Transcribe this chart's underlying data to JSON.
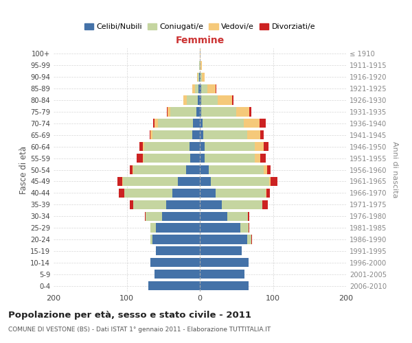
{
  "age_groups_bottom_to_top": [
    "0-4",
    "5-9",
    "10-14",
    "15-19",
    "20-24",
    "25-29",
    "30-34",
    "35-39",
    "40-44",
    "45-49",
    "50-54",
    "55-59",
    "60-64",
    "65-69",
    "70-74",
    "75-79",
    "80-84",
    "85-89",
    "90-94",
    "95-99",
    "100+"
  ],
  "birth_years_bottom_to_top": [
    "2006-2010",
    "2001-2005",
    "1996-2000",
    "1991-1995",
    "1986-1990",
    "1981-1985",
    "1976-1980",
    "1971-1975",
    "1966-1970",
    "1961-1965",
    "1956-1960",
    "1951-1955",
    "1946-1950",
    "1941-1945",
    "1936-1940",
    "1931-1935",
    "1926-1930",
    "1921-1925",
    "1916-1920",
    "1911-1915",
    "≤ 1910"
  ],
  "colors": {
    "celibi": "#4472a8",
    "coniugati": "#c5d5a0",
    "vedovi": "#f5c97a",
    "divorziati": "#cc2222"
  },
  "males": {
    "celibi": [
      70,
      62,
      68,
      60,
      65,
      60,
      52,
      46,
      38,
      30,
      19,
      13,
      14,
      10,
      9,
      5,
      3,
      2,
      1,
      0,
      0
    ],
    "coniugati": [
      0,
      0,
      0,
      0,
      3,
      8,
      22,
      45,
      65,
      75,
      72,
      64,
      62,
      55,
      48,
      35,
      15,
      5,
      2,
      1,
      0
    ],
    "vedovi": [
      0,
      0,
      0,
      0,
      0,
      0,
      0,
      0,
      0,
      1,
      1,
      1,
      2,
      3,
      5,
      4,
      5,
      3,
      1,
      0,
      0
    ],
    "divorziati": [
      0,
      0,
      0,
      0,
      0,
      0,
      1,
      5,
      8,
      7,
      4,
      8,
      5,
      1,
      2,
      1,
      0,
      0,
      0,
      0,
      0
    ]
  },
  "females": {
    "celibi": [
      67,
      61,
      67,
      57,
      65,
      55,
      38,
      30,
      22,
      15,
      12,
      7,
      7,
      5,
      4,
      2,
      2,
      2,
      1,
      0,
      0
    ],
    "coniugati": [
      0,
      0,
      0,
      0,
      5,
      12,
      28,
      55,
      68,
      80,
      75,
      68,
      68,
      60,
      56,
      48,
      22,
      8,
      2,
      1,
      0
    ],
    "vedovi": [
      0,
      0,
      0,
      0,
      0,
      0,
      0,
      0,
      1,
      2,
      5,
      8,
      12,
      18,
      22,
      18,
      20,
      12,
      4,
      2,
      1
    ],
    "divorziati": [
      0,
      0,
      0,
      0,
      1,
      1,
      2,
      8,
      5,
      9,
      5,
      7,
      7,
      4,
      8,
      2,
      2,
      1,
      0,
      0,
      0
    ]
  },
  "title": "Popolazione per età, sesso e stato civile - 2011",
  "subtitle": "COMUNE DI VESTONE (BS) - Dati ISTAT 1° gennaio 2011 - Elaborazione TUTTITALIA.IT",
  "label_femmine": "Femmine",
  "ylabel_left": "Fasce di età",
  "ylabel_right": "Anni di nascita",
  "xlim": 200,
  "legend_labels": [
    "Celibi/Nubili",
    "Coniugati/e",
    "Vedovi/e",
    "Divorziati/e"
  ],
  "background_color": "#ffffff",
  "grid_color": "#cccccc"
}
